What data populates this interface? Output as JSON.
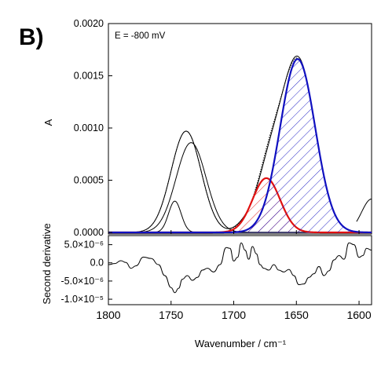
{
  "panel_label": "B)",
  "chart_data": [
    {
      "type": "line",
      "panel": "top",
      "annotation": "E = -800 mV",
      "ylabel": "A",
      "xlabel": "",
      "xlim": [
        1800,
        1590
      ],
      "ylim": [
        0,
        0.002
      ],
      "y_ticks": [
        {
          "value": 0.0,
          "label": "0.0000"
        },
        {
          "value": 0.0005,
          "label": "0.0005"
        },
        {
          "value": 0.001,
          "label": "0.0010"
        },
        {
          "value": 0.0015,
          "label": "0.0015"
        },
        {
          "value": 0.002,
          "label": "0.0020"
        }
      ],
      "series": [
        {
          "style": "dotted",
          "color": "#000000",
          "fill": "none",
          "components": [
            {
              "center": 1738,
              "width": 12,
              "height": 0.00097
            },
            {
              "center": 1690,
              "width": 8,
              "height": 7e-05
            },
            {
              "center": 1673,
              "width": 9.5,
              "height": 0.00046
            },
            {
              "center": 1649,
              "width": 14,
              "height": 0.00165
            }
          ]
        },
        {
          "style": "solid",
          "color": "#000000",
          "fill": "none",
          "components": [
            {
              "center": 1738,
              "width": 12,
              "height": 0.00097
            },
            {
              "center": 1690,
              "width": 8,
              "height": 8e-05
            },
            {
              "center": 1673,
              "width": 9.5,
              "height": 0.00042
            },
            {
              "center": 1649,
              "width": 14,
              "height": 0.00167
            }
          ]
        },
        {
          "style": "solid",
          "color": "#000000",
          "fill": "none",
          "components": [
            {
              "center": 1734,
              "width": 12,
              "height": 0.00086
            }
          ]
        },
        {
          "style": "solid",
          "color": "#000000",
          "fill": "none",
          "components": [
            {
              "center": 1747,
              "width": 5,
              "height": 0.0003
            }
          ]
        },
        {
          "style": "solid",
          "color": "#000000",
          "fill": "none",
          "x_range": [
            1602,
            1590
          ],
          "components": [
            {
              "center": 1590,
              "width": 8,
              "height": 0.00032
            }
          ]
        },
        {
          "style": "solid",
          "color": "#e01010",
          "fill": "hatch-red",
          "components": [
            {
              "center": 1674,
              "width": 11,
              "height": 0.00052
            }
          ]
        },
        {
          "style": "solid",
          "color": "#1010c0",
          "fill": "hatch-blue",
          "components": [
            {
              "center": 1649,
              "width": 14,
              "height": 0.00166
            }
          ]
        }
      ]
    },
    {
      "type": "line",
      "panel": "bottom",
      "ylabel": "Second derivative",
      "xlabel": "Wavenumber / cm⁻¹",
      "xlim": [
        1800,
        1590
      ],
      "ylim": [
        -1.15e-05,
        7.5e-06
      ],
      "x_ticks": [
        {
          "value": 1800,
          "label": "1800"
        },
        {
          "value": 1750,
          "label": "1750"
        },
        {
          "value": 1700,
          "label": "1700"
        },
        {
          "value": 1650,
          "label": "1650"
        },
        {
          "value": 1600,
          "label": "1600"
        }
      ],
      "y_ticks": [
        {
          "value": 5e-06,
          "label": "5.0×10⁻⁶"
        },
        {
          "value": 0.0,
          "label": "0.0"
        },
        {
          "value": -5e-06,
          "label": "-5.0×10⁻⁶"
        },
        {
          "value": -1e-05,
          "label": "-1.0×10⁻⁵"
        }
      ],
      "series": [
        {
          "style": "solid",
          "color": "#000000",
          "x": [
            1800,
            1795,
            1790,
            1786,
            1782,
            1778,
            1772,
            1766,
            1760,
            1755,
            1750,
            1747,
            1744,
            1741,
            1737,
            1733,
            1729,
            1725,
            1721,
            1716,
            1711,
            1706,
            1703,
            1700,
            1697,
            1694,
            1691,
            1688,
            1685,
            1682,
            1679,
            1676,
            1672,
            1668,
            1664,
            1660,
            1656,
            1652,
            1648,
            1644,
            1640,
            1636,
            1632,
            1628,
            1624,
            1620,
            1616,
            1612,
            1608,
            1604,
            1600,
            1597,
            1594,
            1590
          ],
          "y": [
            -5e-07,
            -2e-07,
            6e-07,
            1e-07,
            -1.5e-06,
            -8e-07,
            1.6e-06,
            1.2e-06,
            -5e-07,
            -3.5e-06,
            -6.8e-06,
            -8.2e-06,
            -7e-06,
            -4.5e-06,
            -3.5e-06,
            -4.8e-06,
            -4e-06,
            -2e-06,
            -1.5e-06,
            -2.5e-06,
            -5e-07,
            4.2e-06,
            4e-06,
            5e-07,
            1.5e-06,
            5.5e-06,
            3.5e-06,
            1e-06,
            4.5e-06,
            2.5e-06,
            -5e-07,
            -1.5e-06,
            -2e-06,
            -5e-07,
            -2e-06,
            -2.5e-06,
            -1.8e-06,
            -3.5e-06,
            -6e-06,
            -5.8e-06,
            -4e-06,
            -3e-06,
            -1e-06,
            -3.5e-06,
            -2.2e-06,
            8e-07,
            2e-06,
            1e-06,
            5.5e-06,
            5e-06,
            1.5e-06,
            2e-06,
            4e-06,
            3.5e-06
          ]
        }
      ]
    }
  ]
}
